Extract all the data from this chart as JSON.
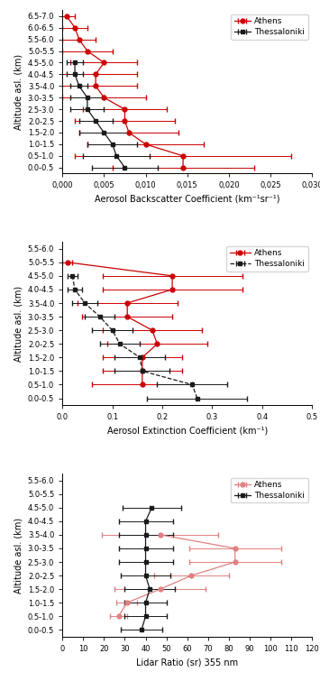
{
  "panel1": {
    "xlabel": "Aerosol Backscatter Coefficient (km⁻¹sr⁻¹)",
    "ylabel": "Altitude asl. (km)",
    "xlim": [
      0,
      0.03
    ],
    "xticks": [
      0.0,
      0.005,
      0.01,
      0.015,
      0.02,
      0.025,
      0.03
    ],
    "xticklabels": [
      "0,000",
      "0,005",
      "0,010",
      "0,015",
      "0,020",
      "0,025",
      "0,030"
    ],
    "ytick_labels": [
      "0.0-0.5",
      "0.5-1.0",
      "1.0-1.5",
      "1.5-2.0",
      "2.0-2.5",
      "2.5-3.0",
      "3.0-3.5",
      "3.5-4.0",
      "4.0-4.5",
      "4.5-5.0",
      "5.0-5.5",
      "5.5-6.0",
      "6.0-6.5",
      "6.5-7.0"
    ],
    "athens_y": [
      0.25,
      0.75,
      1.25,
      1.75,
      2.25,
      2.75,
      3.25,
      3.75,
      4.25,
      4.75,
      5.25,
      5.75,
      6.25,
      6.75
    ],
    "athens_x": [
      0.0145,
      0.0145,
      0.01,
      0.008,
      0.0075,
      0.0075,
      0.005,
      0.004,
      0.004,
      0.005,
      0.003,
      0.002,
      0.0015,
      0.0005
    ],
    "athens_xerr": [
      0.0085,
      0.013,
      0.007,
      0.006,
      0.006,
      0.005,
      0.005,
      0.005,
      0.005,
      0.004,
      0.003,
      0.002,
      0.0015,
      0.001
    ],
    "thess_y": [
      0.25,
      0.75,
      1.25,
      1.75,
      2.25,
      2.75,
      3.25,
      3.75,
      4.25,
      4.75
    ],
    "thess_x": [
      0.0075,
      0.0065,
      0.006,
      0.005,
      0.004,
      0.003,
      0.003,
      0.002,
      0.0015,
      0.0015
    ],
    "thess_xerr": [
      0.004,
      0.004,
      0.003,
      0.003,
      0.002,
      0.002,
      0.002,
      0.001,
      0.001,
      0.001
    ],
    "athens_color": "#cc0000",
    "thess_color": "#1a1a1a",
    "legend_athens": "Athens",
    "legend_thess": "Thessaloniki"
  },
  "panel2": {
    "xlabel": "Aerosol Extinction Coefficient (km⁻¹)",
    "ylabel": "Altitude asl. (km)",
    "xlim": [
      0,
      0.5
    ],
    "xticks": [
      0.0,
      0.1,
      0.2,
      0.3,
      0.4,
      0.5
    ],
    "ytick_labels": [
      "0.0-0.5",
      "0.5-1.0",
      "1.0-1.5",
      "1.5-2.0",
      "2.0-2.5",
      "2.5-3.0",
      "3.0-3.5",
      "3.5-4.0",
      "4.0-4.5",
      "4.5-5.0",
      "5.0-5.5",
      "5.5-6.0"
    ],
    "athens_y": [
      0.75,
      1.25,
      1.75,
      2.25,
      2.75,
      3.25,
      3.75,
      4.25,
      4.75,
      5.25
    ],
    "athens_x": [
      0.16,
      0.16,
      0.16,
      0.19,
      0.18,
      0.13,
      0.13,
      0.22,
      0.22,
      0.01
    ],
    "athens_xerr": [
      0.1,
      0.08,
      0.08,
      0.1,
      0.1,
      0.09,
      0.1,
      0.14,
      0.14,
      0.01
    ],
    "thess_y": [
      0.25,
      0.75,
      1.25,
      1.75,
      2.25,
      2.75,
      3.25,
      3.75,
      4.25,
      4.75
    ],
    "thess_x": [
      0.27,
      0.26,
      0.16,
      0.155,
      0.115,
      0.1,
      0.075,
      0.045,
      0.025,
      0.02
    ],
    "thess_xerr": [
      0.1,
      0.07,
      0.055,
      0.05,
      0.04,
      0.04,
      0.03,
      0.025,
      0.015,
      0.01
    ],
    "athens_color": "#cc0000",
    "thess_color": "#1a1a1a",
    "legend_athens": "Athens",
    "legend_thess": "Thessaloniki"
  },
  "panel3": {
    "xlabel": "Lidar Ratio (sr) 355 nm",
    "ylabel": "Altitude asl. (km)",
    "xlim": [
      0,
      120
    ],
    "xticks": [
      0,
      10,
      20,
      30,
      40,
      50,
      60,
      70,
      80,
      90,
      100,
      110,
      120
    ],
    "ytick_labels": [
      "0.0-0.5",
      "0.5-1.0",
      "1.0-1.5",
      "1.5-2.0",
      "2.0-2.5",
      "2.5-3.0",
      "3.0-3.5",
      "3.5-4.0",
      "4.0-4.5",
      "4.5-5.0",
      "5.0-5.5",
      "5.5-6.0"
    ],
    "athens_y": [
      0.75,
      1.25,
      1.75,
      2.25,
      2.75,
      3.25,
      3.75
    ],
    "athens_x": [
      27,
      31,
      47,
      62,
      83,
      83,
      47
    ],
    "athens_xerr": [
      4,
      5,
      22,
      18,
      22,
      22,
      28
    ],
    "thess_y": [
      0.25,
      0.75,
      1.25,
      1.75,
      2.25,
      2.75,
      3.25,
      3.75,
      4.25,
      4.75
    ],
    "thess_x": [
      38,
      40,
      40,
      42,
      40,
      40,
      40,
      40,
      40,
      43
    ],
    "thess_xerr": [
      10,
      10,
      10,
      12,
      12,
      13,
      13,
      13,
      13,
      14
    ],
    "athens_color": "#e08080",
    "thess_color": "#1a1a1a",
    "legend_athens": "Athens",
    "legend_thess": "Thessaloniki"
  }
}
